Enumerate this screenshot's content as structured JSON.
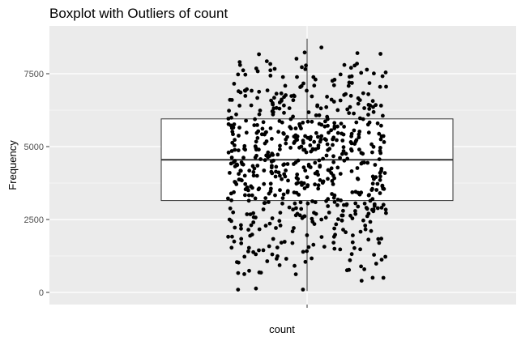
{
  "chart_data": {
    "type": "boxplot",
    "title": "Boxplot with Outliers of  count",
    "xlabel": "count",
    "ylabel": "Frequency",
    "categories": [
      "count"
    ],
    "ylim": [
      -500,
      8900
    ],
    "yticks": [
      0,
      2500,
      5000,
      7500
    ],
    "ytick_labels": [
      "0",
      "2500",
      "5000",
      "7500"
    ],
    "box": {
      "q1": 3150,
      "median": 4550,
      "q3": 5950,
      "whisker_low": 50,
      "whisker_high": 8700
    },
    "points": {
      "count": 660,
      "min": 40,
      "max": 8700,
      "jitter": "horizontal"
    },
    "grid": true,
    "legend": "none",
    "colors": {
      "panel_background": "#ebebeb",
      "grid_major": "#ffffff",
      "box_fill": "#ffffff",
      "box_line": "#333333",
      "point": "#000000"
    }
  }
}
